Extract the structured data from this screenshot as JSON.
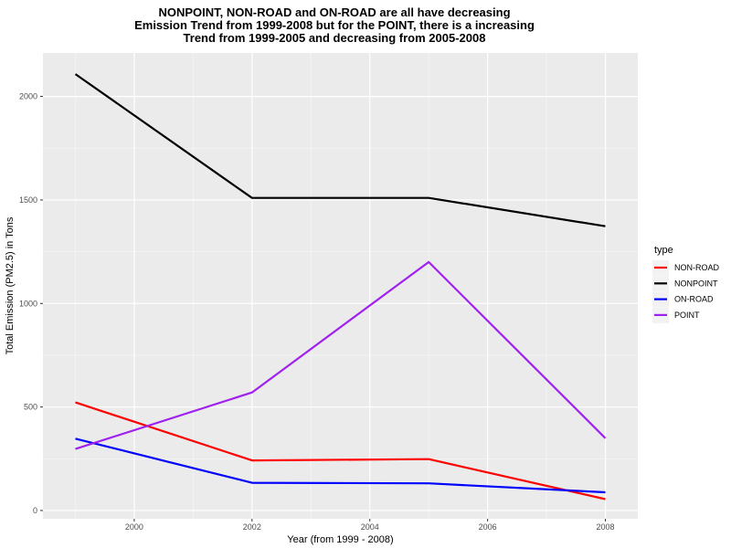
{
  "chart_data": {
    "type": "line",
    "title": [
      "NONPOINT, NON-ROAD and ON-ROAD are all have decreasing",
      "Emission Trend from 1999-2008 but for the POINT, there is a increasing",
      "Trend from 1999-2005 and decreasing from 2005-2008"
    ],
    "xlabel": "Year (from 1999 - 2008)",
    "ylabel": "Total Emission (PM2.5) in Tons",
    "x": [
      1999,
      2002,
      2005,
      2008
    ],
    "xticks": [
      2000,
      2002,
      2004,
      2006,
      2008
    ],
    "yticks": [
      0,
      500,
      1000,
      1500,
      2000
    ],
    "xlim": [
      1998.45,
      2008.55
    ],
    "ylim": [
      -40,
      2210
    ],
    "grid": true,
    "legend": {
      "title": "type",
      "position": "right"
    },
    "series": [
      {
        "name": "NON-ROAD",
        "color": "#ff0000",
        "values": [
          522,
          242,
          248,
          55
        ]
      },
      {
        "name": "NONPOINT",
        "color": "#000000",
        "values": [
          2108,
          1510,
          1510,
          1373
        ]
      },
      {
        "name": "ON-ROAD",
        "color": "#0000ff",
        "values": [
          347,
          134,
          131,
          88
        ]
      },
      {
        "name": "POINT",
        "color": "#a020f0",
        "values": [
          297,
          570,
          1200,
          349
        ]
      }
    ]
  }
}
